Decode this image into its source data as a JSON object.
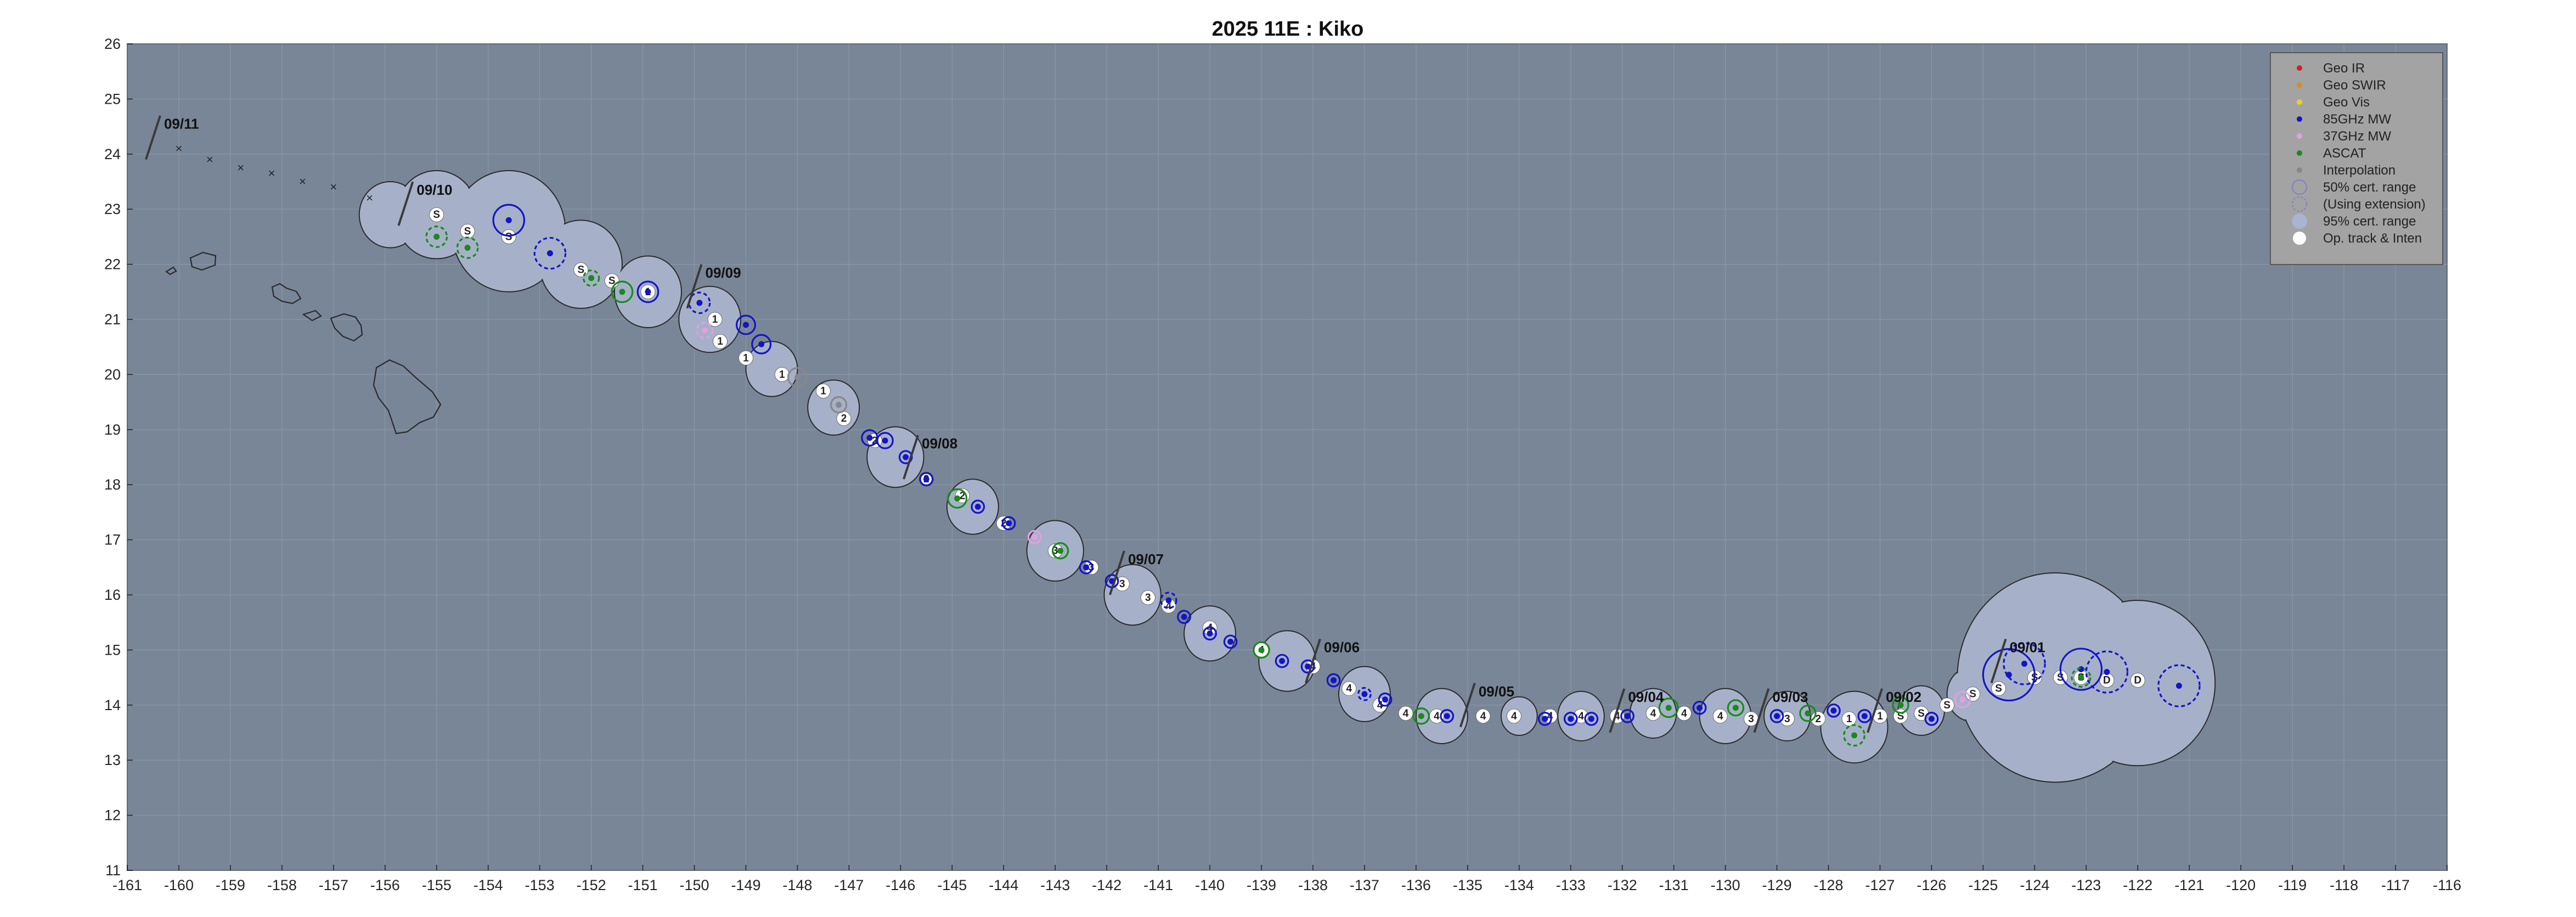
{
  "chart_data": {
    "type": "scatter",
    "title": "2025  11E :  Kiko",
    "xlim": [
      -161,
      -116
    ],
    "ylim": [
      11,
      26
    ],
    "xticks": [
      "-161",
      "-160",
      "-159",
      "-158",
      "-157",
      "-156",
      "-155",
      "-154",
      "-153",
      "-152",
      "-151",
      "-150",
      "-149",
      "-148",
      "-147",
      "-146",
      "-145",
      "-144",
      "-143",
      "-142",
      "-141",
      "-140",
      "-139",
      "-138",
      "-137",
      "-136",
      "-135",
      "-134",
      "-133",
      "-132",
      "-131",
      "-130",
      "-129",
      "-128",
      "-127",
      "-126",
      "-125",
      "-124",
      "-123",
      "-122",
      "-121",
      "-120",
      "-119",
      "-118",
      "-117",
      "-116"
    ],
    "yticks": [
      "11",
      "12",
      "13",
      "14",
      "15",
      "16",
      "17",
      "18",
      "19",
      "20",
      "21",
      "22",
      "23",
      "24",
      "25",
      "26"
    ],
    "grid": true,
    "legend_position": "top-right",
    "legend": [
      {
        "label": "Geo IR",
        "color": "#cc2222",
        "kind": "dot"
      },
      {
        "label": "Geo SWIR",
        "color": "#e08a1e",
        "kind": "dot"
      },
      {
        "label": "Geo Vis",
        "color": "#e8d21c",
        "kind": "dot"
      },
      {
        "label": "85GHz MW",
        "color": "#1414c8",
        "kind": "dot"
      },
      {
        "label": "37GHz MW",
        "color": "#e0a0e0",
        "kind": "dot"
      },
      {
        "label": "ASCAT",
        "color": "#1a8a1a",
        "kind": "dot"
      },
      {
        "label": "Interpolation",
        "color": "#888888",
        "kind": "dot"
      },
      {
        "label": "50% cert. range",
        "color": "#8080c0",
        "kind": "ring"
      },
      {
        "label": "(Using extension)",
        "color": "#8080c0",
        "kind": "ring-dashed"
      },
      {
        "label": "95% cert. range",
        "color": "#a8b4d0",
        "kind": "blob"
      },
      {
        "label": "Op. track & Inten",
        "color": "#ffffff",
        "kind": "white-dot"
      }
    ],
    "dates": [
      {
        "label": "09/11",
        "x": -160.5,
        "y": 24.3
      },
      {
        "label": "09/10",
        "x": -155.6,
        "y": 23.1
      },
      {
        "label": "09/09",
        "x": -150.0,
        "y": 21.6
      },
      {
        "label": "09/08",
        "x": -145.8,
        "y": 18.5
      },
      {
        "label": "09/07",
        "x": -141.8,
        "y": 16.4
      },
      {
        "label": "09/06",
        "x": -138.0,
        "y": 14.8
      },
      {
        "label": "09/05",
        "x": -135.0,
        "y": 14.0
      },
      {
        "label": "09/04",
        "x": -132.1,
        "y": 13.9
      },
      {
        "label": "09/03",
        "x": -129.3,
        "y": 13.9
      },
      {
        "label": "09/02",
        "x": -127.1,
        "y": 13.9
      },
      {
        "label": "09/01",
        "x": -124.7,
        "y": 14.8
      }
    ],
    "op_track": [
      {
        "x": -160.0,
        "y": 24.1,
        "i": "x"
      },
      {
        "x": -159.4,
        "y": 23.9,
        "i": "x"
      },
      {
        "x": -158.8,
        "y": 23.75,
        "i": "x"
      },
      {
        "x": -158.2,
        "y": 23.65,
        "i": "x"
      },
      {
        "x": -157.6,
        "y": 23.5,
        "i": "x"
      },
      {
        "x": -157.0,
        "y": 23.4,
        "i": "x"
      },
      {
        "x": -156.3,
        "y": 23.2,
        "i": "x"
      },
      {
        "x": -155.0,
        "y": 22.9,
        "i": "S"
      },
      {
        "x": -154.4,
        "y": 22.6,
        "i": "S"
      },
      {
        "x": -153.6,
        "y": 22.5,
        "i": "S"
      },
      {
        "x": -152.2,
        "y": 21.9,
        "i": "S"
      },
      {
        "x": -151.6,
        "y": 21.7,
        "i": "S"
      },
      {
        "x": -150.9,
        "y": 21.5,
        "i": "1"
      },
      {
        "x": -149.6,
        "y": 21.0,
        "i": "1"
      },
      {
        "x": -149.5,
        "y": 20.6,
        "i": "1"
      },
      {
        "x": -149.0,
        "y": 20.3,
        "i": "1"
      },
      {
        "x": -148.3,
        "y": 20.0,
        "i": "1"
      },
      {
        "x": -147.5,
        "y": 19.7,
        "i": "1"
      },
      {
        "x": -147.1,
        "y": 19.2,
        "i": "2"
      },
      {
        "x": -146.5,
        "y": 18.8,
        "i": "2"
      },
      {
        "x": -145.5,
        "y": 18.1,
        "i": "2"
      },
      {
        "x": -144.8,
        "y": 17.8,
        "i": "2"
      },
      {
        "x": -144.0,
        "y": 17.3,
        "i": "2"
      },
      {
        "x": -143.0,
        "y": 16.8,
        "i": "3"
      },
      {
        "x": -142.3,
        "y": 16.5,
        "i": "3"
      },
      {
        "x": -141.7,
        "y": 16.2,
        "i": "3"
      },
      {
        "x": -141.2,
        "y": 15.95,
        "i": "3"
      },
      {
        "x": -140.8,
        "y": 15.8,
        "i": "4"
      },
      {
        "x": -140.0,
        "y": 15.4,
        "i": "4"
      },
      {
        "x": -139.0,
        "y": 15.0,
        "i": "4"
      },
      {
        "x": -138.0,
        "y": 14.7,
        "i": "4"
      },
      {
        "x": -137.3,
        "y": 14.3,
        "i": "4"
      },
      {
        "x": -136.7,
        "y": 14.0,
        "i": "4"
      },
      {
        "x": -136.2,
        "y": 13.85,
        "i": "4"
      },
      {
        "x": -135.6,
        "y": 13.8,
        "i": "4"
      },
      {
        "x": -134.7,
        "y": 13.8,
        "i": "4"
      },
      {
        "x": -134.1,
        "y": 13.8,
        "i": "4"
      },
      {
        "x": -133.4,
        "y": 13.8,
        "i": "4"
      },
      {
        "x": -132.8,
        "y": 13.8,
        "i": "4"
      },
      {
        "x": -132.1,
        "y": 13.8,
        "i": "4"
      },
      {
        "x": -131.4,
        "y": 13.85,
        "i": "4"
      },
      {
        "x": -130.8,
        "y": 13.85,
        "i": "4"
      },
      {
        "x": -130.1,
        "y": 13.8,
        "i": "4"
      },
      {
        "x": -129.5,
        "y": 13.75,
        "i": "3"
      },
      {
        "x": -128.8,
        "y": 13.75,
        "i": "3"
      },
      {
        "x": -128.2,
        "y": 13.75,
        "i": "2"
      },
      {
        "x": -127.6,
        "y": 13.75,
        "i": "1"
      },
      {
        "x": -127.0,
        "y": 13.8,
        "i": "1"
      },
      {
        "x": -126.6,
        "y": 13.8,
        "i": "S"
      },
      {
        "x": -126.2,
        "y": 13.85,
        "i": "S"
      },
      {
        "x": -125.7,
        "y": 14.0,
        "i": "S"
      },
      {
        "x": -125.2,
        "y": 14.2,
        "i": "S"
      },
      {
        "x": -124.7,
        "y": 14.3,
        "i": "S"
      },
      {
        "x": -124.0,
        "y": 14.5,
        "i": "S"
      },
      {
        "x": -123.5,
        "y": 14.5,
        "i": "S"
      },
      {
        "x": -123.1,
        "y": 14.5,
        "i": "S"
      },
      {
        "x": -122.6,
        "y": 14.45,
        "i": "D"
      },
      {
        "x": -122.0,
        "y": 14.45,
        "i": "D"
      }
    ],
    "fixes": [
      {
        "x": -155.0,
        "y": 22.5,
        "sensor": "ASCAT",
        "r": 0.2,
        "dashed": true
      },
      {
        "x": -154.4,
        "y": 22.3,
        "sensor": "ASCAT",
        "r": 0.2,
        "dashed": true
      },
      {
        "x": -153.6,
        "y": 22.8,
        "sensor": "85GHz MW",
        "r": 0.3,
        "dashed": false
      },
      {
        "x": -152.8,
        "y": 22.2,
        "sensor": "85GHz MW",
        "r": 0.3,
        "dashed": true
      },
      {
        "x": -152.0,
        "y": 21.75,
        "sensor": "ASCAT",
        "r": 0.15,
        "dashed": true
      },
      {
        "x": -151.4,
        "y": 21.5,
        "sensor": "ASCAT",
        "r": 0.2,
        "dashed": false
      },
      {
        "x": -150.9,
        "y": 21.5,
        "sensor": "85GHz MW",
        "r": 0.2,
        "dashed": false
      },
      {
        "x": -149.9,
        "y": 21.3,
        "sensor": "85GHz MW",
        "r": 0.2,
        "dashed": true
      },
      {
        "x": -149.8,
        "y": 20.8,
        "sensor": "37GHz MW",
        "r": 0.15,
        "dashed": true
      },
      {
        "x": -149.0,
        "y": 20.9,
        "sensor": "85GHz MW",
        "r": 0.18,
        "dashed": false
      },
      {
        "x": -148.7,
        "y": 20.55,
        "sensor": "85GHz MW",
        "r": 0.18,
        "dashed": false
      },
      {
        "x": -148.0,
        "y": 19.95,
        "sensor": "Interpolation",
        "r": 0.18,
        "dashed": false
      },
      {
        "x": -147.2,
        "y": 19.45,
        "sensor": "Interpolation",
        "r": 0.15,
        "dashed": false
      },
      {
        "x": -146.6,
        "y": 18.85,
        "sensor": "85GHz MW",
        "r": 0.15,
        "dashed": false
      },
      {
        "x": -146.3,
        "y": 18.8,
        "sensor": "85GHz MW",
        "r": 0.15,
        "dashed": false
      },
      {
        "x": -145.9,
        "y": 18.5,
        "sensor": "85GHz MW",
        "r": 0.12,
        "dashed": false
      },
      {
        "x": -145.5,
        "y": 18.1,
        "sensor": "85GHz MW",
        "r": 0.12,
        "dashed": false
      },
      {
        "x": -144.9,
        "y": 17.75,
        "sensor": "ASCAT",
        "r": 0.18,
        "dashed": false
      },
      {
        "x": -144.5,
        "y": 17.6,
        "sensor": "85GHz MW",
        "r": 0.12,
        "dashed": false
      },
      {
        "x": -143.9,
        "y": 17.3,
        "sensor": "85GHz MW",
        "r": 0.12,
        "dashed": false
      },
      {
        "x": -143.4,
        "y": 17.05,
        "sensor": "37GHz MW",
        "r": 0.12,
        "dashed": false
      },
      {
        "x": -142.9,
        "y": 16.8,
        "sensor": "ASCAT",
        "r": 0.15,
        "dashed": false
      },
      {
        "x": -142.4,
        "y": 16.5,
        "sensor": "85GHz MW",
        "r": 0.12,
        "dashed": false
      },
      {
        "x": -141.9,
        "y": 16.25,
        "sensor": "85GHz MW",
        "r": 0.12,
        "dashed": false
      },
      {
        "x": -140.8,
        "y": 15.9,
        "sensor": "85GHz MW",
        "r": 0.15,
        "dashed": true
      },
      {
        "x": -140.5,
        "y": 15.6,
        "sensor": "85GHz MW",
        "r": 0.12,
        "dashed": false
      },
      {
        "x": -140.0,
        "y": 15.3,
        "sensor": "85GHz MW",
        "r": 0.12,
        "dashed": false
      },
      {
        "x": -139.6,
        "y": 15.15,
        "sensor": "85GHz MW",
        "r": 0.12,
        "dashed": false
      },
      {
        "x": -139.0,
        "y": 15.0,
        "sensor": "ASCAT",
        "r": 0.15,
        "dashed": false
      },
      {
        "x": -138.6,
        "y": 14.8,
        "sensor": "85GHz MW",
        "r": 0.12,
        "dashed": false
      },
      {
        "x": -138.1,
        "y": 14.7,
        "sensor": "85GHz MW",
        "r": 0.12,
        "dashed": false
      },
      {
        "x": -137.6,
        "y": 14.45,
        "sensor": "85GHz MW",
        "r": 0.12,
        "dashed": false
      },
      {
        "x": -137.0,
        "y": 14.2,
        "sensor": "85GHz MW",
        "r": 0.12,
        "dashed": true
      },
      {
        "x": -136.6,
        "y": 14.1,
        "sensor": "85GHz MW",
        "r": 0.12,
        "dashed": false
      },
      {
        "x": -135.9,
        "y": 13.8,
        "sensor": "ASCAT",
        "r": 0.15,
        "dashed": false
      },
      {
        "x": -135.4,
        "y": 13.8,
        "sensor": "85GHz MW",
        "r": 0.12,
        "dashed": false
      },
      {
        "x": -133.5,
        "y": 13.75,
        "sensor": "85GHz MW",
        "r": 0.12,
        "dashed": false
      },
      {
        "x": -133.0,
        "y": 13.75,
        "sensor": "85GHz MW",
        "r": 0.12,
        "dashed": false
      },
      {
        "x": -132.6,
        "y": 13.75,
        "sensor": "85GHz MW",
        "r": 0.12,
        "dashed": false
      },
      {
        "x": -131.9,
        "y": 13.8,
        "sensor": "85GHz MW",
        "r": 0.12,
        "dashed": false
      },
      {
        "x": -131.1,
        "y": 13.95,
        "sensor": "ASCAT",
        "r": 0.18,
        "dashed": false
      },
      {
        "x": -130.5,
        "y": 13.95,
        "sensor": "85GHz MW",
        "r": 0.12,
        "dashed": false
      },
      {
        "x": -129.8,
        "y": 13.95,
        "sensor": "ASCAT",
        "r": 0.15,
        "dashed": false
      },
      {
        "x": -129.0,
        "y": 13.8,
        "sensor": "85GHz MW",
        "r": 0.12,
        "dashed": false
      },
      {
        "x": -128.4,
        "y": 13.85,
        "sensor": "ASCAT",
        "r": 0.15,
        "dashed": false
      },
      {
        "x": -127.9,
        "y": 13.9,
        "sensor": "85GHz MW",
        "r": 0.12,
        "dashed": false
      },
      {
        "x": -127.5,
        "y": 13.45,
        "sensor": "ASCAT",
        "r": 0.2,
        "dashed": true
      },
      {
        "x": -127.3,
        "y": 13.8,
        "sensor": "85GHz MW",
        "r": 0.12,
        "dashed": false
      },
      {
        "x": -126.6,
        "y": 14.0,
        "sensor": "ASCAT",
        "r": 0.15,
        "dashed": false
      },
      {
        "x": -126.0,
        "y": 13.75,
        "sensor": "85GHz MW",
        "r": 0.12,
        "dashed": false
      },
      {
        "x": -125.4,
        "y": 14.1,
        "sensor": "37GHz MW",
        "r": 0.15,
        "dashed": false
      },
      {
        "x": -124.5,
        "y": 14.55,
        "sensor": "85GHz MW",
        "r": 0.5,
        "dashed": false
      },
      {
        "x": -124.2,
        "y": 14.75,
        "sensor": "85GHz MW",
        "r": 0.4,
        "dashed": true
      },
      {
        "x": -123.1,
        "y": 14.65,
        "sensor": "85GHz MW",
        "r": 0.4,
        "dashed": false
      },
      {
        "x": -123.1,
        "y": 14.5,
        "sensor": "ASCAT",
        "r": 0.18,
        "dashed": true
      },
      {
        "x": -122.6,
        "y": 14.6,
        "sensor": "85GHz MW",
        "r": 0.4,
        "dashed": true
      },
      {
        "x": -121.2,
        "y": 14.35,
        "sensor": "85GHz MW",
        "r": 0.4,
        "dashed": true
      }
    ],
    "cone": [
      {
        "x": -155.9,
        "y": 22.9,
        "r": 0.6
      },
      {
        "x": -155.0,
        "y": 22.9,
        "r": 0.8
      },
      {
        "x": -153.6,
        "y": 22.6,
        "r": 1.1
      },
      {
        "x": -152.2,
        "y": 22.0,
        "r": 0.8
      },
      {
        "x": -150.9,
        "y": 21.5,
        "r": 0.65
      },
      {
        "x": -149.7,
        "y": 21.0,
        "r": 0.6
      },
      {
        "x": -148.5,
        "y": 20.1,
        "r": 0.5
      },
      {
        "x": -147.3,
        "y": 19.4,
        "r": 0.5
      },
      {
        "x": -146.1,
        "y": 18.5,
        "r": 0.55
      },
      {
        "x": -144.6,
        "y": 17.6,
        "r": 0.5
      },
      {
        "x": -143.0,
        "y": 16.8,
        "r": 0.55
      },
      {
        "x": -141.5,
        "y": 16.0,
        "r": 0.55
      },
      {
        "x": -140.0,
        "y": 15.3,
        "r": 0.5
      },
      {
        "x": -138.5,
        "y": 14.8,
        "r": 0.55
      },
      {
        "x": -137.0,
        "y": 14.2,
        "r": 0.5
      },
      {
        "x": -135.5,
        "y": 13.8,
        "r": 0.5
      },
      {
        "x": -134.0,
        "y": 13.8,
        "r": 0.35
      },
      {
        "x": -132.8,
        "y": 13.8,
        "r": 0.45
      },
      {
        "x": -131.4,
        "y": 13.85,
        "r": 0.45
      },
      {
        "x": -130.0,
        "y": 13.8,
        "r": 0.5
      },
      {
        "x": -128.8,
        "y": 13.8,
        "r": 0.45
      },
      {
        "x": -127.5,
        "y": 13.6,
        "r": 0.65
      },
      {
        "x": -126.2,
        "y": 13.9,
        "r": 0.45
      },
      {
        "x": -125.2,
        "y": 14.2,
        "r": 0.5
      },
      {
        "x": -123.6,
        "y": 14.5,
        "r": 1.9
      },
      {
        "x": -122.0,
        "y": 14.4,
        "r": 1.5
      }
    ]
  }
}
